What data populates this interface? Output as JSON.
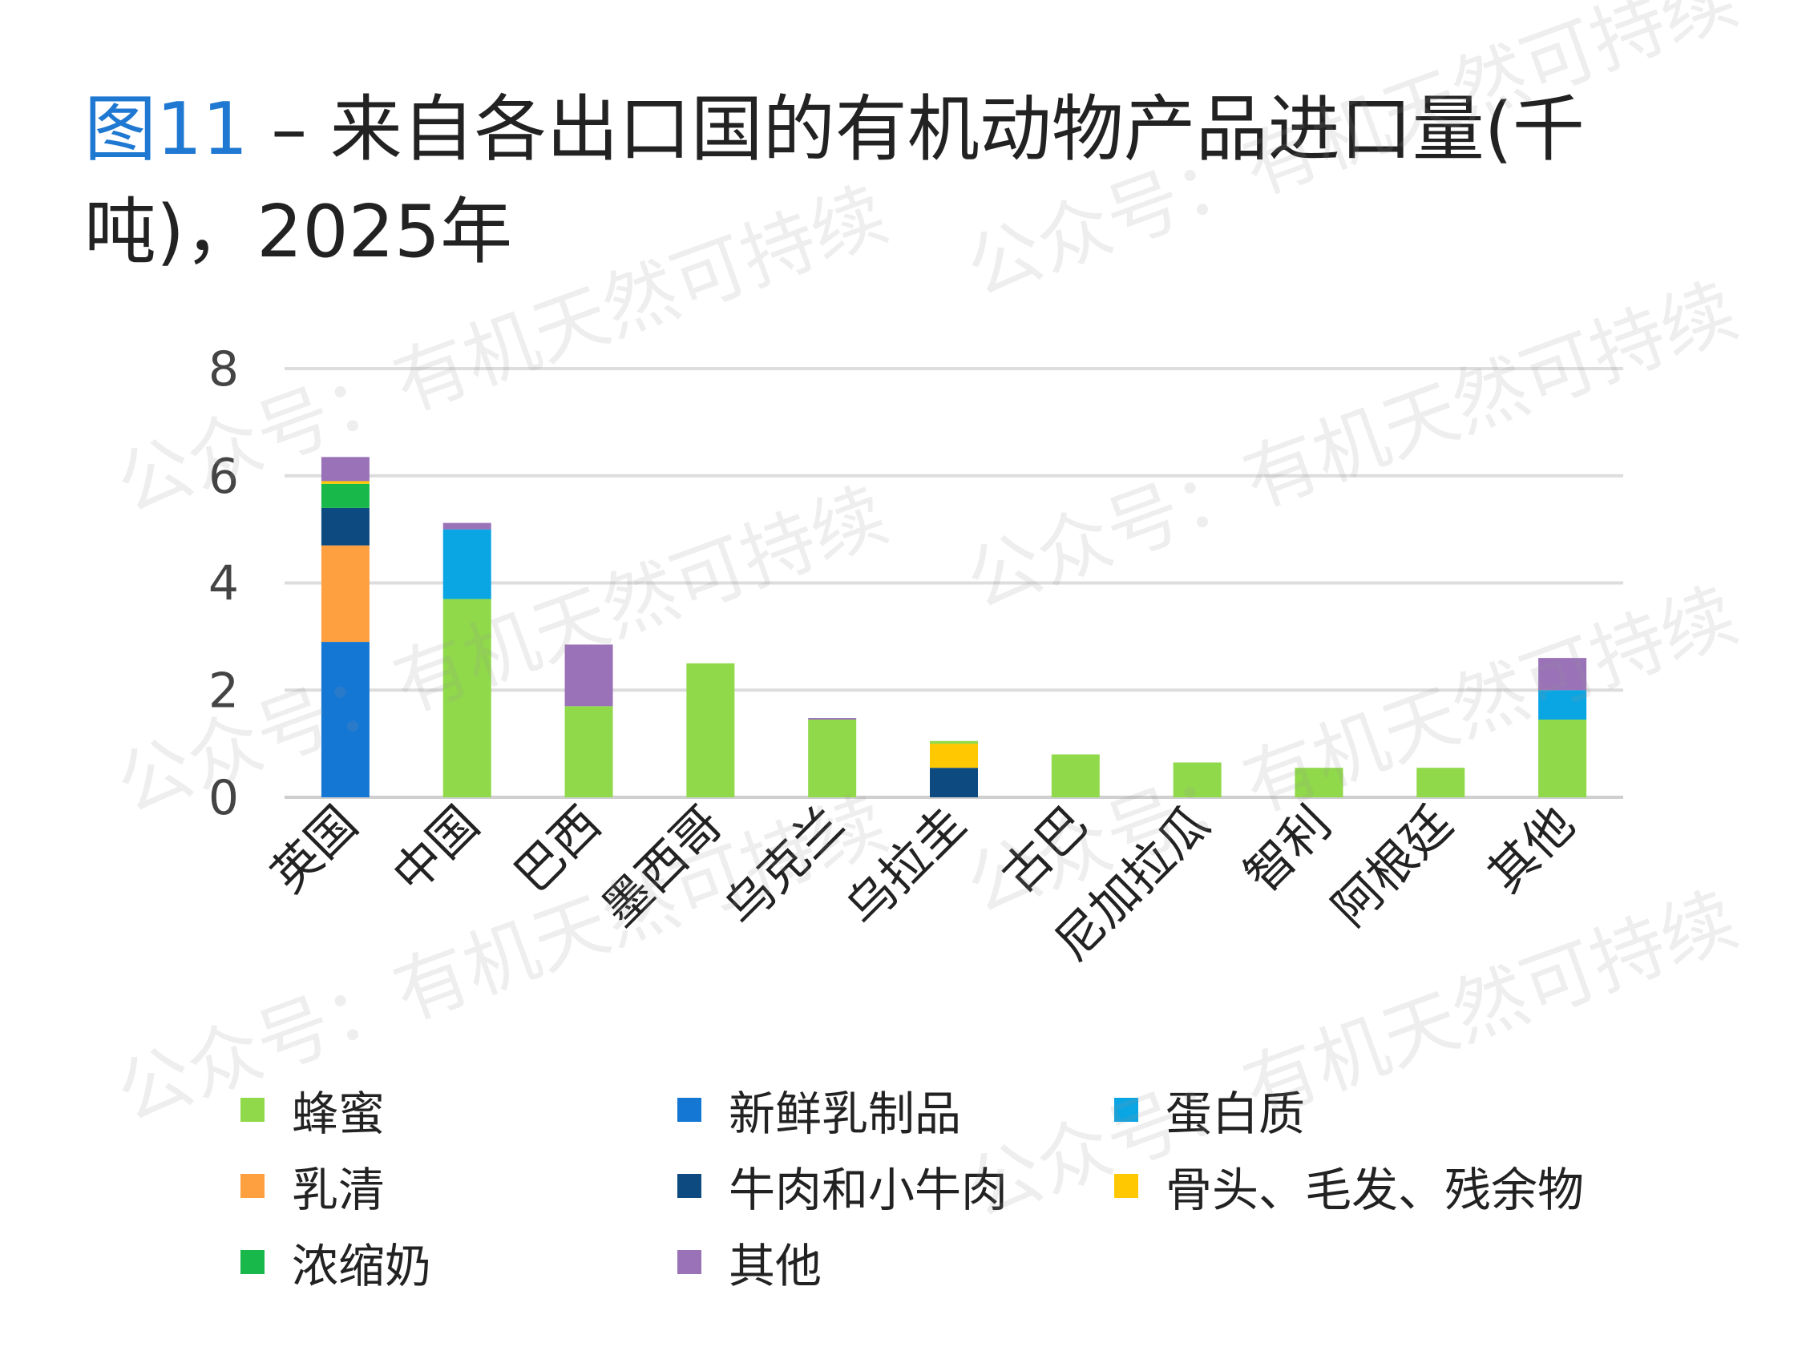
{
  "title": {
    "figure_label": "图11",
    "text": " – 来自各出口国的有机动物产品进口量(千吨)，2025年"
  },
  "watermark": "公众号：有机天然可持续",
  "chart_data": {
    "type": "bar",
    "stacked": true,
    "ylim": [
      0,
      8
    ],
    "yticks": [
      "0",
      "2",
      "4",
      "6",
      "8"
    ],
    "grid": true,
    "legend_position": "bottom",
    "categories": [
      "英国",
      "中国",
      "巴西",
      "墨西哥",
      "乌克兰",
      "乌拉圭",
      "古巴",
      "尼加拉瓜",
      "智利",
      "阿根廷",
      "其他"
    ],
    "series": [
      {
        "name": "蜂蜜",
        "color": "#8fd94a",
        "values": [
          0,
          3.7,
          1.7,
          2.5,
          1.45,
          0.05,
          0.8,
          0.65,
          0.55,
          0.55,
          1.45
        ]
      },
      {
        "name": "新鲜乳制品",
        "color": "#1577d4",
        "values": [
          2.9,
          0,
          0,
          0,
          0,
          0,
          0,
          0,
          0,
          0,
          0
        ]
      },
      {
        "name": "蛋白质",
        "color": "#0aa5e3",
        "values": [
          0,
          1.3,
          0,
          0,
          0,
          0,
          0,
          0,
          0,
          0,
          0.55
        ]
      },
      {
        "name": "乳清",
        "color": "#ffa040",
        "values": [
          1.8,
          0,
          0,
          0,
          0,
          0,
          0,
          0,
          0,
          0,
          0
        ]
      },
      {
        "name": "牛肉和小牛肉",
        "color": "#0d4a80",
        "values": [
          0.7,
          0,
          0,
          0,
          0,
          0.55,
          0,
          0,
          0,
          0,
          0
        ]
      },
      {
        "name": "骨头、毛发、残余物",
        "color": "#ffc800",
        "values": [
          0.05,
          0,
          0,
          0,
          0,
          0.45,
          0,
          0,
          0,
          0,
          0
        ]
      },
      {
        "name": "浓缩奶",
        "color": "#18b84a",
        "values": [
          0.45,
          0,
          0,
          0,
          0,
          0,
          0,
          0,
          0,
          0,
          0
        ]
      },
      {
        "name": "其他",
        "color": "#9a72b8",
        "values": [
          0.45,
          0.12,
          1.15,
          0,
          0.03,
          0,
          0,
          0,
          0,
          0,
          0.6
        ]
      }
    ]
  }
}
